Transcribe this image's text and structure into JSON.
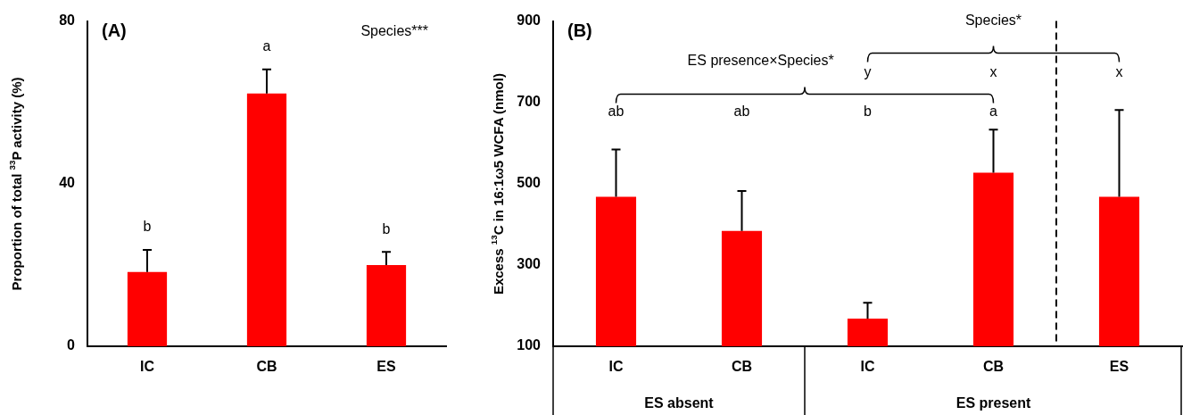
{
  "chart_data": [
    {
      "type": "bar",
      "title": "(A)",
      "ylabel": "Proportion of total $^{33}$P activity (%)",
      "categories": [
        "IC",
        "CB",
        "ES"
      ],
      "values": [
        18.3,
        62.2,
        20.0
      ],
      "color": "#ff0000",
      "errors": [
        [
          18.3,
          23.7
        ],
        [
          62.2,
          68.1
        ],
        [
          20.0,
          23.2
        ]
      ],
      "ylim": [
        0,
        80
      ],
      "yticks": [
        0,
        40,
        80
      ],
      "grid": false,
      "legend": false,
      "annotations": [
        "Species***",
        "b",
        "a",
        "b"
      ]
    },
    {
      "type": "bar",
      "title": "(B)",
      "ylabel": "Excess $^{13}$C in 16:1ω5 WCFA (nmol)",
      "categories": [
        "IC",
        "CB",
        "IC",
        "CB",
        "ES"
      ],
      "values": [
        468,
        384,
        168,
        527,
        468
      ],
      "color": "#ff0000",
      "errors": [
        [
          468,
          584
        ],
        [
          384,
          482
        ],
        [
          168,
          207
        ],
        [
          527,
          633
        ],
        [
          468,
          681
        ]
      ],
      "ylim": [
        100,
        900
      ],
      "yticks": [
        100,
        300,
        500,
        700,
        900
      ],
      "grid": false,
      "legend": false,
      "annotations": [
        "Species*",
        "ES presence×Species*",
        "ab",
        "ab",
        "b",
        "a",
        "y",
        "x",
        "x",
        "ES absent",
        "ES present"
      ]
    }
  ]
}
